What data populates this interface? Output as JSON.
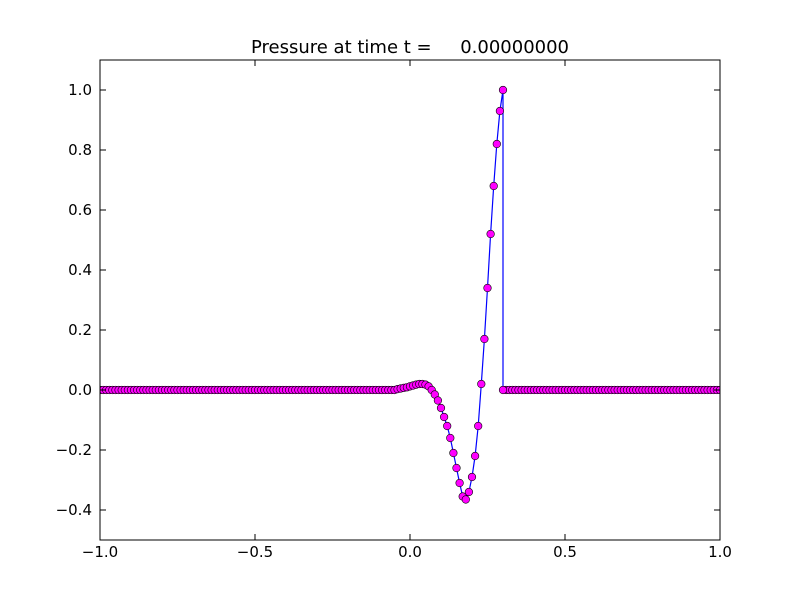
{
  "chart_data": {
    "type": "line",
    "title": "Pressure at time t =     0.00000000",
    "xlabel": "",
    "ylabel": "",
    "xlim": [
      -1.0,
      1.0
    ],
    "ylim": [
      -0.5,
      1.1
    ],
    "grid": false,
    "x_ticks": [
      "−1.0",
      "−0.5",
      "0.0",
      "0.5",
      "1.0"
    ],
    "x_tick_values": [
      -1.0,
      -0.5,
      0.0,
      0.5,
      1.0
    ],
    "y_ticks": [
      "−0.4",
      "−0.2",
      "0.0",
      "0.2",
      "0.4",
      "0.6",
      "0.8",
      "1.0"
    ],
    "y_tick_values": [
      -0.4,
      -0.2,
      0.0,
      0.2,
      0.4,
      0.6,
      0.8,
      1.0
    ],
    "series": [
      {
        "line_color": "#0000ff",
        "marker_color": "#ff00ff",
        "marker": "circle",
        "x_start": -1.0,
        "x_end": 1.0,
        "x_step": 0.01,
        "points": [
          [
            -1.0,
            0.0
          ],
          [
            -0.05,
            0.0
          ],
          [
            -0.04,
            0.003
          ],
          [
            -0.03,
            0.005
          ],
          [
            -0.02,
            0.007
          ],
          [
            -0.01,
            0.009
          ],
          [
            0.0,
            0.012
          ],
          [
            0.01,
            0.015
          ],
          [
            0.02,
            0.018
          ],
          [
            0.03,
            0.02
          ],
          [
            0.04,
            0.02
          ],
          [
            0.05,
            0.018
          ],
          [
            0.06,
            0.012
          ],
          [
            0.07,
            0.0
          ],
          [
            0.08,
            -0.015
          ],
          [
            0.09,
            -0.035
          ],
          [
            0.1,
            -0.06
          ],
          [
            0.11,
            -0.09
          ],
          [
            0.12,
            -0.12
          ],
          [
            0.13,
            -0.16
          ],
          [
            0.14,
            -0.21
          ],
          [
            0.15,
            -0.26
          ],
          [
            0.16,
            -0.31
          ],
          [
            0.17,
            -0.355
          ],
          [
            0.18,
            -0.365
          ],
          [
            0.19,
            -0.34
          ],
          [
            0.2,
            -0.29
          ],
          [
            0.21,
            -0.22
          ],
          [
            0.22,
            -0.12
          ],
          [
            0.23,
            0.02
          ],
          [
            0.24,
            0.17
          ],
          [
            0.25,
            0.34
          ],
          [
            0.26,
            0.52
          ],
          [
            0.27,
            0.68
          ],
          [
            0.28,
            0.82
          ],
          [
            0.29,
            0.93
          ],
          [
            0.3,
            1.0
          ],
          [
            0.3,
            0.0
          ],
          [
            1.0,
            0.0
          ]
        ]
      }
    ]
  }
}
